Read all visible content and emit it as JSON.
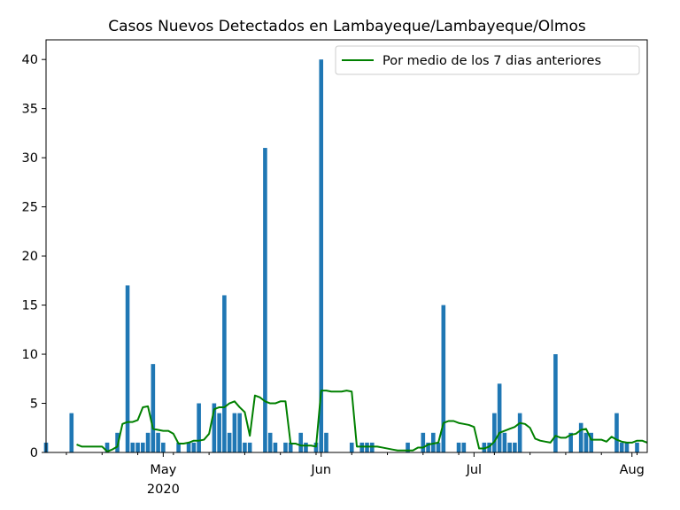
{
  "chart_data": {
    "type": "bar",
    "title": "Casos Nuevos Detectados en Lambayeque/Lambayeque/Olmos",
    "xlabel": "",
    "ylabel": "",
    "x_start": "2020-04-08",
    "x_end": "2020-08-04",
    "ylim": [
      0,
      42
    ],
    "yticks": [
      0,
      5,
      10,
      15,
      20,
      25,
      30,
      35,
      40
    ],
    "xticks": [
      {
        "date": "2020-05-01",
        "label": "May",
        "sublabel": "2020"
      },
      {
        "date": "2020-06-01",
        "label": "Jun",
        "sublabel": ""
      },
      {
        "date": "2020-07-01",
        "label": "Jul",
        "sublabel": ""
      },
      {
        "date": "2020-08-01",
        "label": "Aug",
        "sublabel": ""
      }
    ],
    "legend": {
      "label": "Por medio de los 7 dias anteriores",
      "placement": "upper-right"
    },
    "bar_color": "#1f77b4",
    "line_color": "#008000",
    "series": [
      {
        "kind": "bar",
        "x": [
          "2020-04-08",
          "2020-04-13",
          "2020-04-20",
          "2020-04-22",
          "2020-04-24",
          "2020-04-25",
          "2020-04-26",
          "2020-04-27",
          "2020-04-28",
          "2020-04-29",
          "2020-04-30",
          "2020-05-01",
          "2020-05-04",
          "2020-05-06",
          "2020-05-07",
          "2020-05-08",
          "2020-05-11",
          "2020-05-12",
          "2020-05-13",
          "2020-05-14",
          "2020-05-15",
          "2020-05-16",
          "2020-05-17",
          "2020-05-18",
          "2020-05-21",
          "2020-05-22",
          "2020-05-23",
          "2020-05-25",
          "2020-05-26",
          "2020-05-28",
          "2020-05-29",
          "2020-05-31",
          "2020-06-01",
          "2020-06-02",
          "2020-06-07",
          "2020-06-09",
          "2020-06-10",
          "2020-06-11",
          "2020-06-18",
          "2020-06-21",
          "2020-06-22",
          "2020-06-23",
          "2020-06-24",
          "2020-06-25",
          "2020-06-28",
          "2020-06-29",
          "2020-07-03",
          "2020-07-04",
          "2020-07-05",
          "2020-07-06",
          "2020-07-07",
          "2020-07-08",
          "2020-07-09",
          "2020-07-10",
          "2020-07-17",
          "2020-07-20",
          "2020-07-22",
          "2020-07-23",
          "2020-07-24",
          "2020-07-29",
          "2020-07-30",
          "2020-07-31",
          "2020-08-02"
        ],
        "values": [
          1,
          4,
          1,
          2,
          17,
          1,
          1,
          1,
          2,
          9,
          2,
          1,
          1,
          1,
          1,
          5,
          5,
          4,
          16,
          2,
          4,
          4,
          1,
          1,
          31,
          2,
          1,
          1,
          1,
          2,
          1,
          1,
          40,
          2,
          1,
          1,
          1,
          1,
          1,
          2,
          1,
          2,
          1,
          15,
          1,
          1,
          1,
          1,
          4,
          7,
          2,
          1,
          1,
          4,
          10,
          2,
          3,
          2,
          2,
          4,
          1,
          1,
          1
        ]
      },
      {
        "kind": "line",
        "name": "Por medio de los 7 dias anteriores",
        "x": [
          "2020-04-14",
          "2020-04-15",
          "2020-04-16",
          "2020-04-17",
          "2020-04-18",
          "2020-04-19",
          "2020-04-20",
          "2020-04-21",
          "2020-04-22",
          "2020-04-23",
          "2020-04-24",
          "2020-04-25",
          "2020-04-26",
          "2020-04-27",
          "2020-04-28",
          "2020-04-29",
          "2020-04-30",
          "2020-05-01",
          "2020-05-02",
          "2020-05-03",
          "2020-05-04",
          "2020-05-05",
          "2020-05-06",
          "2020-05-07",
          "2020-05-08",
          "2020-05-09",
          "2020-05-10",
          "2020-05-11",
          "2020-05-12",
          "2020-05-13",
          "2020-05-14",
          "2020-05-15",
          "2020-05-16",
          "2020-05-17",
          "2020-05-18",
          "2020-05-19",
          "2020-05-20",
          "2020-05-21",
          "2020-05-22",
          "2020-05-23",
          "2020-05-24",
          "2020-05-25",
          "2020-05-26",
          "2020-05-27",
          "2020-05-28",
          "2020-05-29",
          "2020-05-30",
          "2020-05-31",
          "2020-06-01",
          "2020-06-02",
          "2020-06-03",
          "2020-06-04",
          "2020-06-05",
          "2020-06-06",
          "2020-06-07",
          "2020-06-08",
          "2020-06-09",
          "2020-06-10",
          "2020-06-11",
          "2020-06-12",
          "2020-06-13",
          "2020-06-14",
          "2020-06-15",
          "2020-06-16",
          "2020-06-17",
          "2020-06-18",
          "2020-06-19",
          "2020-06-20",
          "2020-06-21",
          "2020-06-22",
          "2020-06-23",
          "2020-06-24",
          "2020-06-25",
          "2020-06-26",
          "2020-06-27",
          "2020-06-28",
          "2020-06-29",
          "2020-06-30",
          "2020-07-01",
          "2020-07-02",
          "2020-07-03",
          "2020-07-04",
          "2020-07-05",
          "2020-07-06",
          "2020-07-07",
          "2020-07-08",
          "2020-07-09",
          "2020-07-10",
          "2020-07-11",
          "2020-07-12",
          "2020-07-13",
          "2020-07-14",
          "2020-07-15",
          "2020-07-16",
          "2020-07-17",
          "2020-07-18",
          "2020-07-19",
          "2020-07-20",
          "2020-07-21",
          "2020-07-22",
          "2020-07-23",
          "2020-07-24",
          "2020-07-25",
          "2020-07-26",
          "2020-07-27",
          "2020-07-28",
          "2020-07-29",
          "2020-07-30",
          "2020-07-31",
          "2020-08-01",
          "2020-08-02",
          "2020-08-03",
          "2020-08-04"
        ],
        "values": [
          0.8,
          0.6,
          0.6,
          0.6,
          0.6,
          0.6,
          0.1,
          0.3,
          0.6,
          2.9,
          3.1,
          3.1,
          3.3,
          4.6,
          4.7,
          2.4,
          2.3,
          2.2,
          2.2,
          1.9,
          0.9,
          0.9,
          1.0,
          1.2,
          1.2,
          1.3,
          1.9,
          4.4,
          4.6,
          4.6,
          5.0,
          5.2,
          4.6,
          4.1,
          1.7,
          5.8,
          5.6,
          5.2,
          5.0,
          5.0,
          5.2,
          5.2,
          0.9,
          0.9,
          0.7,
          0.7,
          0.7,
          0.6,
          6.3,
          6.3,
          6.2,
          6.2,
          6.2,
          6.3,
          6.2,
          0.6,
          0.6,
          0.6,
          0.6,
          0.6,
          0.5,
          0.4,
          0.3,
          0.2,
          0.2,
          0.2,
          0.2,
          0.5,
          0.5,
          0.8,
          0.9,
          1.0,
          3.0,
          3.2,
          3.2,
          3.0,
          2.9,
          2.8,
          2.6,
          0.4,
          0.4,
          0.6,
          1.1,
          2.0,
          2.2,
          2.4,
          2.6,
          3.0,
          2.9,
          2.5,
          1.4,
          1.2,
          1.1,
          1.0,
          1.7,
          1.5,
          1.5,
          1.8,
          1.9,
          2.3,
          2.4,
          1.3,
          1.3,
          1.3,
          1.1,
          1.6,
          1.3,
          1.1,
          1.0,
          1.0,
          1.2,
          1.2,
          1.0
        ]
      }
    ]
  }
}
